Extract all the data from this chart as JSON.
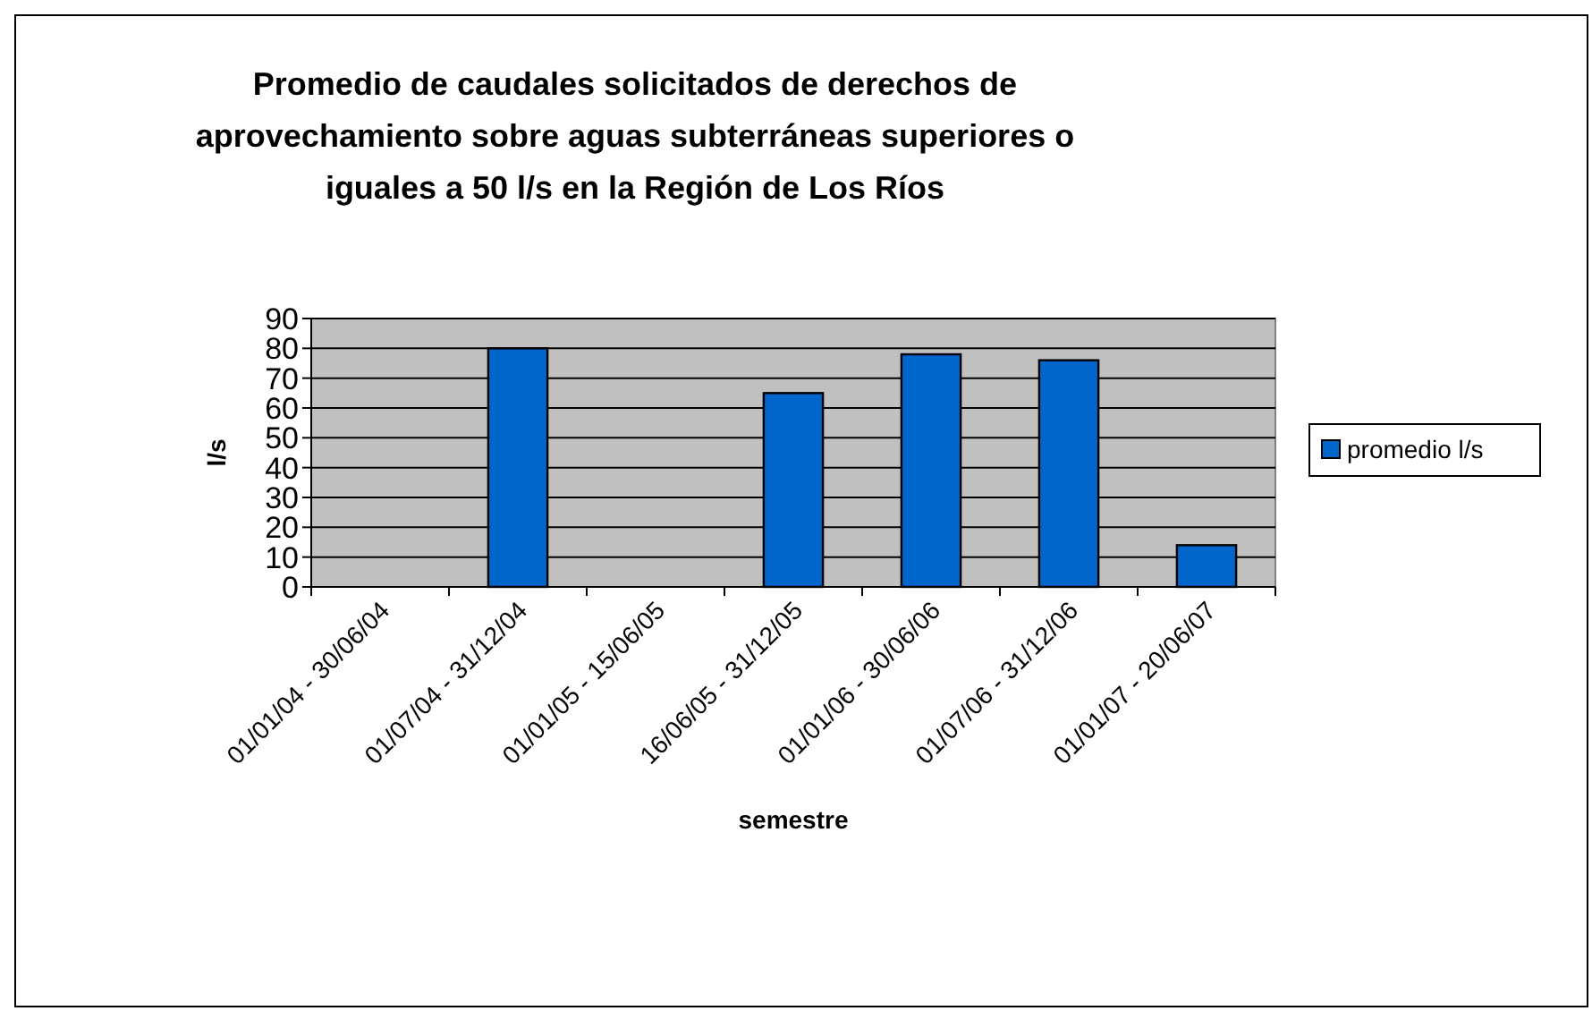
{
  "chart_data": {
    "type": "bar",
    "title": "Promedio de caudales solicitados de derechos de aprovechamiento sobre aguas subterráneas superiores o iguales a 50 l/s en la Región de Los Ríos",
    "xlabel": "semestre",
    "ylabel": "l/s",
    "categories": [
      "01/01/04 - 30/06/04",
      "01/07/04 - 31/12/04",
      "01/01/05 - 15/06/05",
      "16/06/05 - 31/12/05",
      "01/01/06 - 30/06/06",
      "01/07/06 - 31/12/06",
      "01/01/07 - 20/06/07"
    ],
    "series": [
      {
        "name": "promedio l/s",
        "color": "#0066cc",
        "values": [
          null,
          80,
          null,
          65,
          78,
          76,
          14
        ]
      }
    ],
    "ylim": [
      0,
      90
    ],
    "yticks": [
      0,
      10,
      20,
      30,
      40,
      50,
      60,
      70,
      80,
      90
    ],
    "grid": "y",
    "legend": "right"
  }
}
